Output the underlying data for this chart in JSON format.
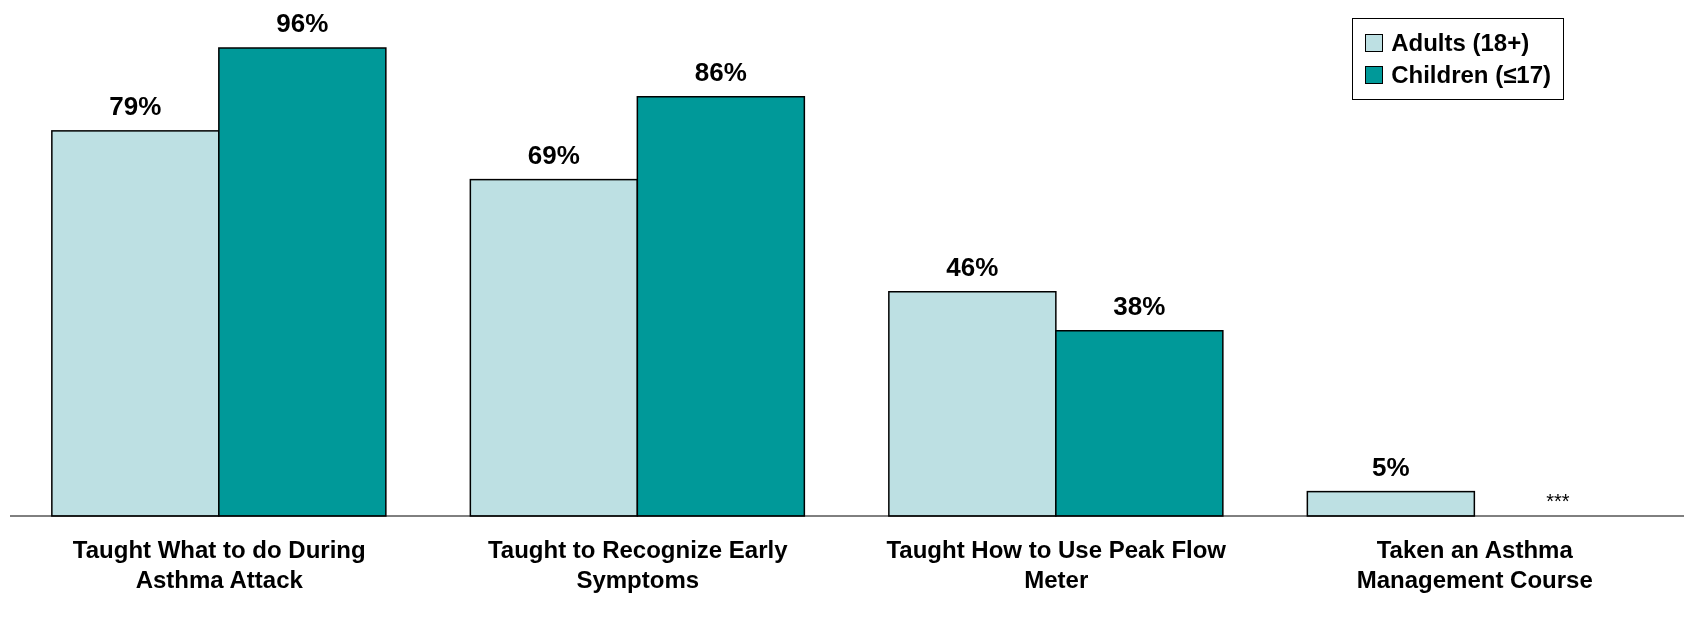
{
  "chart_data": {
    "type": "bar",
    "categories": [
      "Taught What to do During Asthma Attack",
      "Taught to Recognize Early Symptoms",
      "Taught How to Use Peak Flow Meter",
      "Taken an Asthma Management Course"
    ],
    "series": [
      {
        "name": "Adults (18+)",
        "color": "#bde0e3",
        "values": [
          79,
          69,
          46,
          5
        ],
        "value_labels": [
          "79%",
          "69%",
          "46%",
          "5%"
        ]
      },
      {
        "name": "Children (≤17)",
        "color": "#009999",
        "values": [
          96,
          86,
          38,
          null
        ],
        "value_labels": [
          "96%",
          "86%",
          "38%",
          "***"
        ]
      }
    ],
    "legend": "top right",
    "grid": false
  }
}
